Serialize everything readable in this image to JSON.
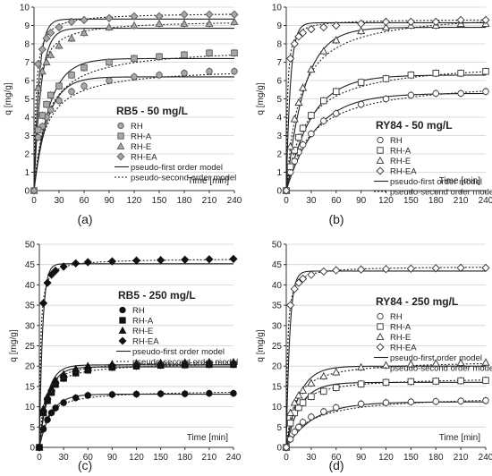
{
  "chart_data": [
    {
      "type": "scatter",
      "panel_label": "(a)",
      "title": "RB5 - 50 mg/L",
      "xlabel": "Time [min]",
      "ylabel": "q [mg/g]",
      "xlim": [
        0,
        240
      ],
      "ylim": [
        0,
        10
      ],
      "xticks": [
        0,
        30,
        60,
        90,
        120,
        150,
        180,
        210,
        240
      ],
      "yticks": [
        0,
        1,
        2,
        3,
        4,
        5,
        6,
        7,
        8,
        9,
        10
      ],
      "marker_style": "gray",
      "legend_position": "right-center",
      "model_legend": [
        "pseudo-first order model",
        "pseudo-second order model"
      ],
      "series": [
        {
          "name": "RH",
          "marker": "circle",
          "x": [
            0,
            5,
            10,
            15,
            20,
            30,
            45,
            60,
            90,
            120,
            150,
            180,
            210,
            240
          ],
          "y": [
            0,
            2.9,
            3.5,
            4.0,
            4.4,
            4.9,
            5.4,
            5.7,
            6.0,
            6.2,
            6.3,
            6.4,
            6.5,
            6.5
          ],
          "pfo": {
            "qe": 6.2,
            "k": 0.06
          },
          "pso": {
            "qe": 6.75,
            "k": 0.0105
          }
        },
        {
          "name": "RH-A",
          "marker": "square",
          "x": [
            0,
            5,
            10,
            15,
            20,
            30,
            45,
            60,
            90,
            120,
            150,
            180,
            210,
            240
          ],
          "y": [
            0,
            3.3,
            4.1,
            4.7,
            5.2,
            5.7,
            6.3,
            6.7,
            7.0,
            7.2,
            7.3,
            7.4,
            7.5,
            7.5
          ],
          "pfo": {
            "qe": 7.2,
            "k": 0.055
          },
          "pso": {
            "qe": 7.85,
            "k": 0.0085
          }
        },
        {
          "name": "RH-E",
          "marker": "triangle",
          "x": [
            0,
            5,
            10,
            15,
            20,
            30,
            45,
            60,
            90,
            120,
            150,
            180,
            210,
            240
          ],
          "y": [
            0,
            5.6,
            6.5,
            7.0,
            7.4,
            7.9,
            8.3,
            8.6,
            8.9,
            9.0,
            9.1,
            9.1,
            9.1,
            9.2
          ],
          "pfo": {
            "qe": 8.85,
            "k": 0.12
          },
          "pso": {
            "qe": 9.3,
            "k": 0.025
          }
        },
        {
          "name": "RH-EA",
          "marker": "diamond",
          "x": [
            0,
            5,
            10,
            15,
            20,
            30,
            45,
            60,
            90,
            120,
            150,
            180,
            210,
            240
          ],
          "y": [
            0,
            6.9,
            7.7,
            8.3,
            8.6,
            8.9,
            9.2,
            9.3,
            9.4,
            9.5,
            9.5,
            9.6,
            9.6,
            9.6
          ],
          "pfo": {
            "qe": 9.35,
            "k": 0.17
          },
          "pso": {
            "qe": 9.7,
            "k": 0.045
          }
        }
      ]
    },
    {
      "type": "scatter",
      "panel_label": "(b)",
      "title": "RY84 - 50 mg/L",
      "xlabel": "Time [min]",
      "ylabel": "q [mg/g]",
      "xlim": [
        0,
        240
      ],
      "ylim": [
        0,
        10
      ],
      "xticks": [
        0,
        30,
        60,
        90,
        120,
        150,
        180,
        210,
        240
      ],
      "yticks": [
        0,
        1,
        2,
        3,
        4,
        5,
        6,
        7,
        8,
        9,
        10
      ],
      "marker_style": "open",
      "legend_position": "right-bottom",
      "model_legend": [
        "pseudo-first order model",
        "pseudo-second order model"
      ],
      "series": [
        {
          "name": "RH",
          "marker": "circle",
          "x": [
            0,
            5,
            10,
            15,
            20,
            30,
            45,
            60,
            90,
            120,
            150,
            180,
            210,
            240
          ],
          "y": [
            0,
            1.0,
            1.6,
            2.1,
            2.5,
            3.1,
            3.8,
            4.2,
            4.7,
            5.0,
            5.2,
            5.3,
            5.3,
            5.4
          ],
          "pfo": {
            "qe": 5.3,
            "k": 0.028
          },
          "pso": {
            "qe": 6.1,
            "k": 0.0055
          }
        },
        {
          "name": "RH-A",
          "marker": "square",
          "x": [
            0,
            5,
            10,
            15,
            20,
            30,
            45,
            60,
            90,
            120,
            150,
            180,
            210,
            240
          ],
          "y": [
            0,
            1.3,
            2.2,
            2.9,
            3.4,
            4.1,
            4.9,
            5.4,
            5.9,
            6.1,
            6.3,
            6.4,
            6.4,
            6.5
          ],
          "pfo": {
            "qe": 6.3,
            "k": 0.033
          },
          "pso": {
            "qe": 7.1,
            "k": 0.0062
          }
        },
        {
          "name": "RH-E",
          "marker": "triangle",
          "x": [
            0,
            5,
            10,
            15,
            20,
            30,
            45,
            60,
            90,
            120,
            150,
            180,
            210,
            240
          ],
          "y": [
            0,
            2.4,
            3.9,
            4.8,
            5.6,
            6.6,
            7.6,
            8.2,
            8.7,
            8.9,
            9.0,
            9.0,
            9.1,
            9.1
          ],
          "pfo": {
            "qe": 8.9,
            "k": 0.045
          },
          "pso": {
            "qe": 9.8,
            "k": 0.0065
          }
        },
        {
          "name": "RH-EA",
          "marker": "diamond",
          "x": [
            0,
            5,
            10,
            15,
            20,
            30,
            45,
            60,
            90,
            120,
            150,
            180,
            210,
            240
          ],
          "y": [
            0,
            7.2,
            8.0,
            8.4,
            8.6,
            8.8,
            8.9,
            9.0,
            9.1,
            9.2,
            9.2,
            9.2,
            9.3,
            9.3
          ],
          "pfo": {
            "qe": 9.15,
            "k": 0.2
          },
          "pso": {
            "qe": 9.35,
            "k": 0.08
          }
        }
      ]
    },
    {
      "type": "scatter",
      "panel_label": "(c)",
      "title": "RB5 - 250 mg/L",
      "xlabel": "Time [min]",
      "ylabel": "q [mg/g]",
      "xlim": [
        0,
        240
      ],
      "ylim": [
        0,
        50
      ],
      "xticks": [
        0,
        30,
        60,
        90,
        120,
        150,
        180,
        210,
        240
      ],
      "yticks": [
        0,
        5,
        10,
        15,
        20,
        25,
        30,
        35,
        40,
        45,
        50
      ],
      "marker_style": "filled",
      "legend_position": "right-center",
      "model_legend": [
        "pseudo-first order model",
        "pseudo-second order model"
      ],
      "series": [
        {
          "name": "RH",
          "marker": "circle",
          "x": [
            0,
            5,
            10,
            15,
            20,
            30,
            45,
            60,
            90,
            120,
            150,
            180,
            210,
            240
          ],
          "y": [
            0,
            4.5,
            6.8,
            8.5,
            9.7,
            11.0,
            12.2,
            12.8,
            13.0,
            13.1,
            13.2,
            13.2,
            13.3,
            13.3
          ],
          "pfo": {
            "qe": 13.1,
            "k": 0.07
          },
          "pso": {
            "qe": 14.1,
            "k": 0.0075
          }
        },
        {
          "name": "RH-A",
          "marker": "square",
          "x": [
            0,
            5,
            10,
            15,
            20,
            30,
            45,
            60,
            90,
            120,
            150,
            180,
            210,
            240
          ],
          "y": [
            0,
            8.5,
            11.5,
            13.5,
            15.5,
            17.0,
            18.3,
            19.0,
            19.7,
            20.0,
            20.2,
            20.3,
            20.4,
            20.4
          ],
          "pfo": {
            "qe": 19.8,
            "k": 0.09
          },
          "pso": {
            "qe": 21.0,
            "k": 0.0065
          }
        },
        {
          "name": "RH-E",
          "marker": "triangle",
          "x": [
            0,
            5,
            10,
            15,
            20,
            30,
            45,
            60,
            90,
            120,
            150,
            180,
            210,
            240
          ],
          "y": [
            0,
            9.5,
            12.5,
            14.5,
            16.5,
            18.0,
            19.3,
            20.0,
            20.5,
            20.7,
            20.8,
            20.9,
            21.0,
            21.0
          ],
          "pfo": {
            "qe": 20.3,
            "k": 0.1
          },
          "pso": {
            "qe": 21.5,
            "k": 0.0075
          }
        },
        {
          "name": "RH-EA",
          "marker": "diamond",
          "x": [
            0,
            5,
            10,
            15,
            20,
            30,
            45,
            60,
            90,
            120,
            150,
            180,
            210,
            240
          ],
          "y": [
            0,
            35.5,
            40.5,
            42.5,
            43.5,
            44.5,
            45.3,
            45.6,
            45.8,
            46.0,
            46.1,
            46.2,
            46.3,
            46.4
          ],
          "pfo": {
            "qe": 45.2,
            "k": 0.25
          },
          "pso": {
            "qe": 46.5,
            "k": 0.015
          }
        }
      ]
    },
    {
      "type": "scatter",
      "panel_label": "(d)",
      "title": "RY84 - 250 mg/L",
      "xlabel": "Time [min]",
      "ylabel": "q [mg/g]",
      "xlim": [
        0,
        240
      ],
      "ylim": [
        0,
        50
      ],
      "xticks": [
        0,
        30,
        60,
        90,
        120,
        150,
        180,
        210,
        240
      ],
      "yticks": [
        0,
        5,
        10,
        15,
        20,
        25,
        30,
        35,
        40,
        45,
        50
      ],
      "marker_style": "open",
      "legend_position": "right-center",
      "model_legend": [
        "pseudo-first order model",
        "pseudo-second order model"
      ],
      "series": [
        {
          "name": "RH",
          "marker": "circle",
          "x": [
            0,
            5,
            10,
            15,
            20,
            30,
            45,
            60,
            90,
            120,
            150,
            180,
            210,
            240
          ],
          "y": [
            0,
            2.0,
            3.8,
            5.0,
            6.2,
            7.5,
            8.8,
            9.8,
            10.7,
            11.0,
            11.2,
            11.3,
            11.4,
            11.5
          ],
          "pfo": {
            "qe": 11.2,
            "k": 0.03
          },
          "pso": {
            "qe": 12.9,
            "k": 0.0028
          }
        },
        {
          "name": "RH-A",
          "marker": "square",
          "x": [
            0,
            5,
            10,
            15,
            20,
            30,
            45,
            60,
            90,
            120,
            150,
            180,
            210,
            240
          ],
          "y": [
            0,
            6.0,
            8.5,
            9.8,
            11.0,
            12.5,
            13.8,
            14.7,
            15.6,
            16.0,
            16.2,
            16.3,
            16.4,
            16.5
          ],
          "pfo": {
            "qe": 16.0,
            "k": 0.06
          },
          "pso": {
            "qe": 17.3,
            "k": 0.0055
          }
        },
        {
          "name": "RH-E",
          "marker": "triangle",
          "x": [
            0,
            5,
            10,
            15,
            20,
            30,
            45,
            60,
            90,
            120,
            150,
            180,
            210,
            240
          ],
          "y": [
            0,
            8.5,
            11.0,
            12.8,
            14.0,
            15.8,
            17.5,
            18.5,
            19.7,
            20.2,
            20.5,
            20.7,
            20.8,
            20.9
          ],
          "pfo": {
            "qe": 20.0,
            "k": 0.065
          },
          "pso": {
            "qe": 21.5,
            "k": 0.0045
          }
        },
        {
          "name": "RH-EA",
          "marker": "diamond",
          "x": [
            0,
            5,
            10,
            15,
            20,
            30,
            45,
            60,
            90,
            120,
            150,
            180,
            210,
            240
          ],
          "y": [
            0,
            35.0,
            39.0,
            40.5,
            41.5,
            42.5,
            43.3,
            43.6,
            43.8,
            43.9,
            44.0,
            44.1,
            44.2,
            44.2
          ],
          "pfo": {
            "qe": 43.4,
            "k": 0.24
          },
          "pso": {
            "qe": 44.6,
            "k": 0.016
          }
        }
      ]
    }
  ]
}
